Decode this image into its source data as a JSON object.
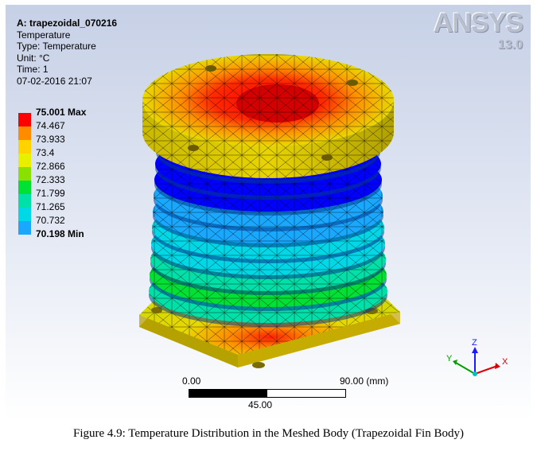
{
  "info": {
    "title": "A: trapezoidal_070216",
    "result": "Temperature",
    "type": "Type: Temperature",
    "unit": "Unit: °C",
    "time": "Time: 1",
    "date": "07-02-2016 21:07"
  },
  "legend": [
    {
      "label": "75.001 Max",
      "color": "#ff0000",
      "bold": true
    },
    {
      "label": "74.467",
      "color": "#ff8c00"
    },
    {
      "label": "73.933",
      "color": "#ffd200"
    },
    {
      "label": "73.4",
      "color": "#e8f000"
    },
    {
      "label": "72.866",
      "color": "#8ae000"
    },
    {
      "label": "72.333",
      "color": "#00e035"
    },
    {
      "label": "71.799",
      "color": "#00e0a8"
    },
    {
      "label": "71.265",
      "color": "#00d8e8"
    },
    {
      "label": "70.732",
      "color": "#1aa8ff"
    },
    {
      "label": "70.198 Min",
      "color": "#0000ff",
      "bold": true
    }
  ],
  "logo": {
    "brand": "ANSYS",
    "version": "13.0"
  },
  "scale": {
    "left": "0.00",
    "right": "90.00 (mm)",
    "mid": "45.00"
  },
  "triad": {
    "x": "X",
    "y": "Y",
    "z": "Z"
  },
  "caption": "Figure 4.9: Temperature Distribution in the Meshed Body (Trapezoidal Fin Body)"
}
